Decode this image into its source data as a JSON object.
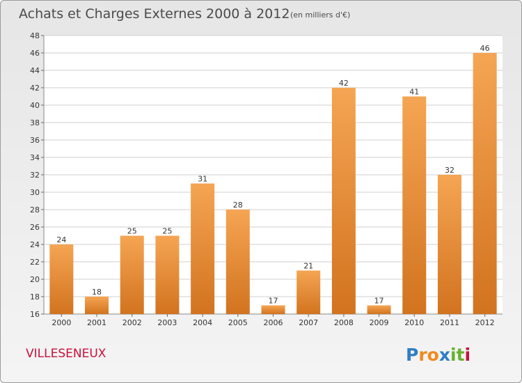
{
  "chart_data": {
    "type": "bar",
    "title": "Achats et Charges Externes 2000 à 2012",
    "subtitle": "(en milliers d'€)",
    "xlabel": "",
    "ylabel": "",
    "categories": [
      "2000",
      "2001",
      "2002",
      "2003",
      "2004",
      "2005",
      "2006",
      "2007",
      "2008",
      "2009",
      "2010",
      "2011",
      "2012"
    ],
    "values": [
      24,
      18,
      25,
      25,
      31,
      28,
      17,
      21,
      42,
      17,
      41,
      32,
      46
    ],
    "ylim": [
      16,
      48
    ],
    "yticks": [
      16,
      18,
      20,
      22,
      24,
      26,
      28,
      30,
      32,
      34,
      36,
      38,
      40,
      42,
      44,
      46,
      48
    ],
    "grid": true,
    "bar_color_top": "#f5a553",
    "bar_color_bottom": "#d2731f"
  },
  "commune_label": "VILLESENEUX",
  "logo": {
    "letters": [
      "P",
      "r",
      "o",
      "x",
      "i",
      "t",
      "i"
    ],
    "colors": [
      "#2e7fc4",
      "#f08a1e",
      "#f08a1e",
      "#2e7fc4",
      "#66b22e",
      "#66b22e",
      "#c8103c"
    ]
  }
}
